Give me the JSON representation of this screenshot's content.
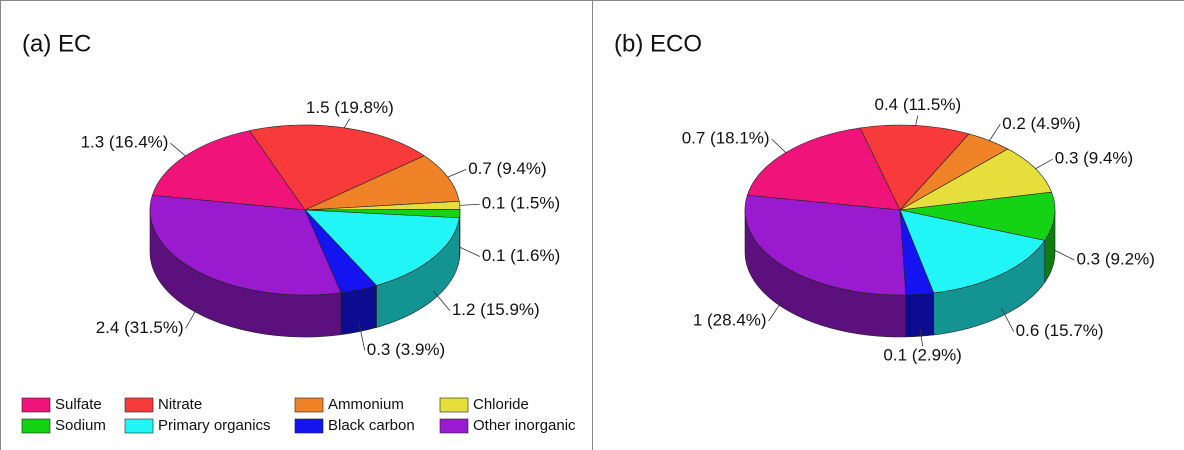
{
  "legend": {
    "categories": [
      "Sulfate",
      "Nitrate",
      "Ammonium",
      "Chloride",
      "Sodium",
      "Primary organics",
      "Black carbon",
      "Other inorganic"
    ],
    "colors": [
      "#f0147a",
      "#f83a3a",
      "#f08228",
      "#e6de3a",
      "#14d214",
      "#22f5f5",
      "#1414f0",
      "#9a1ad0"
    ]
  },
  "chart_data": [
    {
      "type": "pie",
      "title": "(a) EC",
      "values": [
        16.4,
        19.8,
        9.4,
        1.5,
        1.6,
        15.9,
        3.9,
        31.5
      ],
      "value_labels": [
        "1.3 (16.4%)",
        "1.5 (19.8%)",
        "0.7 (9.4%)",
        "0.1 (1.5%)",
        "0.1 (1.6%)",
        "1.2 (15.9%)",
        "0.3 (3.9%)",
        "2.4 (31.5%)"
      ]
    },
    {
      "type": "pie",
      "title": "(b) ECO",
      "values": [
        18.1,
        11.5,
        4.9,
        9.4,
        9.2,
        15.7,
        2.9,
        28.4
      ],
      "value_labels": [
        "0.7 (18.1%)",
        "0.4 (11.5%)",
        "0.2 (4.9%)",
        "0.3 (9.4%)",
        "0.3 (9.2%)",
        "0.6 (15.7%)",
        "0.1 (2.9%)",
        "1 (28.4%)"
      ]
    }
  ]
}
